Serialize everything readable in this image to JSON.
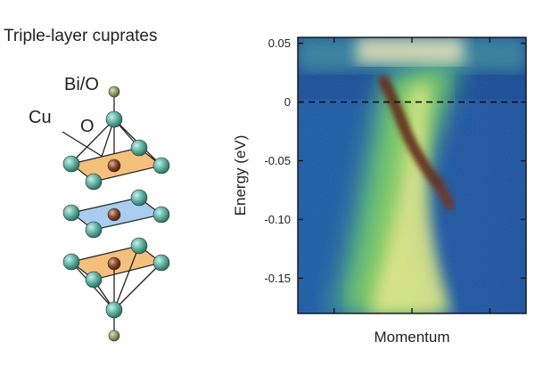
{
  "diagram": {
    "title": "Triple-layer cuprates",
    "labels": {
      "bi_o": "Bi/O",
      "cu": "Cu",
      "o": "O"
    },
    "colors": {
      "outer_plane": "#f5c07c",
      "inner_plane": "#a9cdef",
      "oxygen": "#5fb3a4",
      "copper": "#8b4a2d",
      "bi_o": "#8fa26a"
    }
  },
  "chart_data": {
    "type": "heatmap",
    "title": "",
    "xlabel": "Momentum",
    "ylabel": "Energy (eV)",
    "ylim": [
      -0.18,
      0.055
    ],
    "yticks": [
      0.05,
      0,
      -0.05,
      -0.1,
      -0.15
    ],
    "ytick_labels": [
      "0.05",
      "0",
      "-0.05",
      "-0.10",
      "-0.15"
    ],
    "xtick_count": 3,
    "fermi_level": 0,
    "colormap": [
      "#0a2d7a",
      "#1c5fae",
      "#3fa0c8",
      "#52c07a",
      "#7fcf4e",
      "#d9e27a",
      "#f2e6a0",
      "#6b2a14"
    ]
  }
}
